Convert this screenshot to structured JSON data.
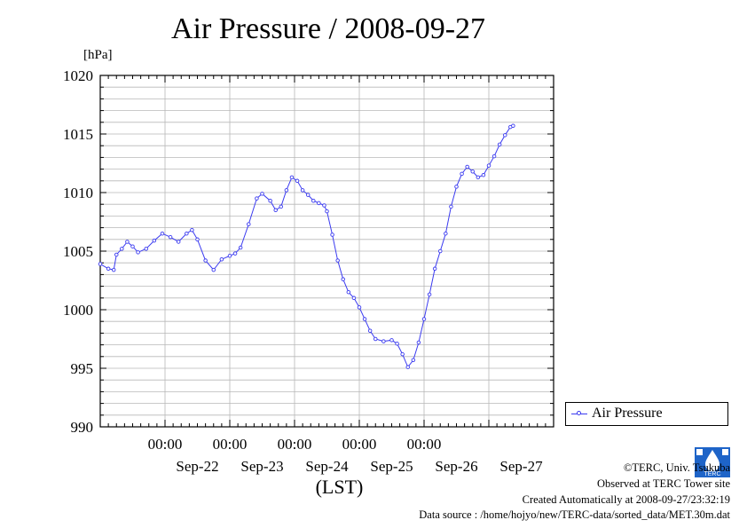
{
  "title": "Air Pressure / 2008-09-27",
  "unit_label": "[hPa]",
  "xlabel": "(LST)",
  "legend": {
    "label": "Air Pressure"
  },
  "colors": {
    "series": "#3b3bf0",
    "grid": "#b8b8b8",
    "axis": "#000000"
  },
  "credits": {
    "copyright": "©TERC, Univ. Tsukuba",
    "observed": "Observed at TERC Tower site",
    "created": "Created Automatically at 2008-09-27/23:32:19",
    "source": "Data source : /home/hojyo/new/TERC-data/sorted_data/MET.30m.dat"
  },
  "logo": {
    "icon": "terc-logo-icon",
    "text": "TERC"
  },
  "chart_data": {
    "type": "line",
    "title": "Air Pressure / 2008-09-27",
    "ylabel": "[hPa]",
    "xlabel": "(LST)",
    "xlim": [
      "2008-09-21T00:00",
      "2008-09-28T00:00"
    ],
    "ylim": [
      990,
      1020
    ],
    "yticks": [
      "990",
      "995",
      "1000",
      "1005",
      "1010",
      "1015",
      "1020"
    ],
    "xticks": [
      {
        "time": "2008-09-22T00:00",
        "label": "00:00"
      },
      {
        "time": "2008-09-23T00:00",
        "label": "00:00"
      },
      {
        "time": "2008-09-24T00:00",
        "label": "00:00"
      },
      {
        "time": "2008-09-25T00:00",
        "label": "00:00"
      },
      {
        "time": "2008-09-26T00:00",
        "label": "00:00"
      }
    ],
    "date_labels": [
      {
        "time": "2008-09-22T12:00",
        "label": "Sep-22"
      },
      {
        "time": "2008-09-23T12:00",
        "label": "Sep-23"
      },
      {
        "time": "2008-09-24T12:00",
        "label": "Sep-24"
      },
      {
        "time": "2008-09-25T12:00",
        "label": "Sep-25"
      },
      {
        "time": "2008-09-26T12:00",
        "label": "Sep-26"
      },
      {
        "time": "2008-09-27T12:00",
        "label": "Sep-27"
      }
    ],
    "grid": true,
    "legend_position": "right",
    "series": [
      {
        "name": "Air Pressure",
        "points": [
          [
            "2008-09-21T00:00",
            1003.9
          ],
          [
            "2008-09-21T03:00",
            1003.5
          ],
          [
            "2008-09-21T05:00",
            1003.4
          ],
          [
            "2008-09-21T06:00",
            1004.7
          ],
          [
            "2008-09-21T08:00",
            1005.2
          ],
          [
            "2008-09-21T10:00",
            1005.8
          ],
          [
            "2008-09-21T12:00",
            1005.4
          ],
          [
            "2008-09-21T14:00",
            1004.9
          ],
          [
            "2008-09-21T17:00",
            1005.2
          ],
          [
            "2008-09-21T20:00",
            1005.9
          ],
          [
            "2008-09-21T23:00",
            1006.5
          ],
          [
            "2008-09-22T02:00",
            1006.2
          ],
          [
            "2008-09-22T05:00",
            1005.8
          ],
          [
            "2008-09-22T08:00",
            1006.5
          ],
          [
            "2008-09-22T10:00",
            1006.8
          ],
          [
            "2008-09-22T12:00",
            1006.0
          ],
          [
            "2008-09-22T15:00",
            1004.2
          ],
          [
            "2008-09-22T18:00",
            1003.4
          ],
          [
            "2008-09-22T21:00",
            1004.3
          ],
          [
            "2008-09-23T00:00",
            1004.6
          ],
          [
            "2008-09-23T02:00",
            1004.8
          ],
          [
            "2008-09-23T04:00",
            1005.3
          ],
          [
            "2008-09-23T07:00",
            1007.3
          ],
          [
            "2008-09-23T10:00",
            1009.5
          ],
          [
            "2008-09-23T12:00",
            1009.9
          ],
          [
            "2008-09-23T15:00",
            1009.3
          ],
          [
            "2008-09-23T17:00",
            1008.5
          ],
          [
            "2008-09-23T19:00",
            1008.8
          ],
          [
            "2008-09-23T21:00",
            1010.2
          ],
          [
            "2008-09-23T23:00",
            1011.3
          ],
          [
            "2008-09-24T01:00",
            1011.0
          ],
          [
            "2008-09-24T03:00",
            1010.2
          ],
          [
            "2008-09-24T05:00",
            1009.8
          ],
          [
            "2008-09-24T07:00",
            1009.3
          ],
          [
            "2008-09-24T09:00",
            1009.1
          ],
          [
            "2008-09-24T11:00",
            1008.9
          ],
          [
            "2008-09-24T12:00",
            1008.4
          ],
          [
            "2008-09-24T14:00",
            1006.4
          ],
          [
            "2008-09-24T16:00",
            1004.2
          ],
          [
            "2008-09-24T18:00",
            1002.6
          ],
          [
            "2008-09-24T20:00",
            1001.5
          ],
          [
            "2008-09-24T22:00",
            1001.0
          ],
          [
            "2008-09-25T00:00",
            1000.2
          ],
          [
            "2008-09-25T02:00",
            999.2
          ],
          [
            "2008-09-25T04:00",
            998.2
          ],
          [
            "2008-09-25T06:00",
            997.5
          ],
          [
            "2008-09-25T09:00",
            997.3
          ],
          [
            "2008-09-25T12:00",
            997.4
          ],
          [
            "2008-09-25T14:00",
            997.1
          ],
          [
            "2008-09-25T16:00",
            996.2
          ],
          [
            "2008-09-25T18:00",
            995.1
          ],
          [
            "2008-09-25T20:00",
            995.7
          ],
          [
            "2008-09-25T22:00",
            997.2
          ],
          [
            "2008-09-26T00:00",
            999.2
          ],
          [
            "2008-09-26T02:00",
            1001.3
          ],
          [
            "2008-09-26T04:00",
            1003.5
          ],
          [
            "2008-09-26T06:00",
            1005.0
          ],
          [
            "2008-09-26T08:00",
            1006.5
          ],
          [
            "2008-09-26T10:00",
            1008.8
          ],
          [
            "2008-09-26T12:00",
            1010.5
          ],
          [
            "2008-09-26T14:00",
            1011.6
          ],
          [
            "2008-09-26T16:00",
            1012.2
          ],
          [
            "2008-09-26T18:00",
            1011.8
          ],
          [
            "2008-09-26T20:00",
            1011.3
          ],
          [
            "2008-09-26T22:00",
            1011.5
          ],
          [
            "2008-09-27T00:00",
            1012.3
          ],
          [
            "2008-09-27T02:00",
            1013.1
          ],
          [
            "2008-09-27T04:00",
            1014.1
          ],
          [
            "2008-09-27T06:00",
            1014.9
          ],
          [
            "2008-09-27T08:00",
            1015.6
          ],
          [
            "2008-09-27T09:00",
            1015.7
          ]
        ]
      }
    ]
  }
}
